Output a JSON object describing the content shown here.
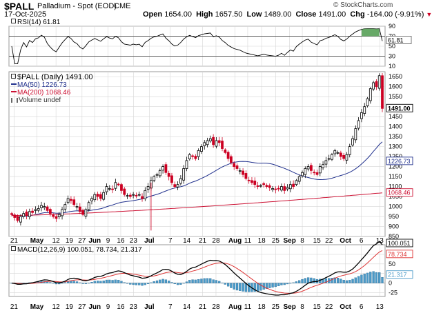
{
  "header": {
    "symbol": "$PALL",
    "name": "Palladium - Spot (EOD)",
    "exchange": "CME",
    "watermark": "© StockCharts.com",
    "date": "17-Oct-2025",
    "open_label": "Open",
    "open_value": "1654.00",
    "high_label": "High",
    "high_value": "1657.50",
    "low_label": "Low",
    "low_value": "1489.00",
    "close_label": "Close",
    "close_value": "1491.00",
    "chg_label": "Chg",
    "chg_value": "-164.00 (-9.91%)",
    "chg_glyph": "▼"
  },
  "colors": {
    "up": "#000000",
    "down": "#cc0022",
    "ma50": "#1f2f8c",
    "ma200": "#cc1133",
    "rsi_fill": "#4c9a4c",
    "hist": "#4a9ac8",
    "macd_signal": "#dd3333",
    "grid": "#d6d6d6"
  },
  "rsi": {
    "legend": "RSI(14) 61.81",
    "value_label": "61.81",
    "ticks": [
      "90",
      "70",
      "50",
      "30",
      "10"
    ]
  },
  "price": {
    "legend_main": "$PALL (Daily) 1491.00",
    "legend_ma50": "MA(50) 1226.73",
    "legend_ma200": "MA(200) 1068.46",
    "legend_volume": "Volume undef",
    "last_label": "1491.00",
    "ma50_label": "1226.73",
    "ma200_label": "1068.46",
    "ticks": [
      "1650",
      "1600",
      "1550",
      "1500",
      "1450",
      "1400",
      "1350",
      "1300",
      "1250",
      "1200",
      "1150",
      "1100",
      "1050",
      "1000",
      "950",
      "900",
      "850"
    ]
  },
  "macd": {
    "legend": "MACD(12,26,9) 100.051, 78.734, 21.317",
    "macd_label": "100.051",
    "signal_label": "78.734",
    "hist_label": "21.317",
    "ticks": [
      "75",
      "50",
      "25",
      "0",
      "-25"
    ]
  },
  "x_axis": {
    "labels": [
      "21",
      "May",
      "12",
      "19",
      "27",
      "Jun",
      "9",
      "16",
      "23",
      "Jul",
      "7",
      "14",
      "21",
      "28",
      "Aug",
      "11",
      "18",
      "25",
      "Sep",
      "8",
      "15",
      "22",
      "Oct",
      "6",
      "13"
    ]
  },
  "chart_data": {
    "type": "candlestick",
    "title": "$PALL Palladium - Spot (EOD) CME",
    "x_labels": [
      "21",
      "May",
      "12",
      "19",
      "27",
      "Jun",
      "9",
      "16",
      "23",
      "Jul",
      "7",
      "14",
      "21",
      "28",
      "Aug",
      "11",
      "18",
      "25",
      "Sep",
      "8",
      "15",
      "22",
      "Oct",
      "6",
      "13"
    ],
    "price_ylim": [
      850,
      1675
    ],
    "ohlc_close_estimated": [
      960,
      945,
      930,
      950,
      965,
      955,
      975,
      970,
      985,
      990,
      1005,
      1000,
      980,
      965,
      950,
      940,
      960,
      985,
      1010,
      1040,
      1030,
      1010,
      1000,
      975,
      960,
      985,
      1020,
      1040,
      1060,
      1050,
      1040,
      1070,
      1100,
      1090,
      1085,
      1120,
      1110,
      1080,
      1060,
      1055,
      1050,
      1060,
      1055,
      1060,
      1040,
      1080,
      1100,
      1130,
      1150,
      1160,
      1180,
      1200,
      1170,
      1150,
      1120,
      1100,
      1110,
      1140,
      1190,
      1230,
      1260,
      1250,
      1240,
      1280,
      1300,
      1320,
      1330,
      1340,
      1310,
      1330,
      1320,
      1290,
      1270,
      1240,
      1220,
      1200,
      1190,
      1180,
      1160,
      1140,
      1130,
      1120,
      1110,
      1100,
      1105,
      1110,
      1100,
      1095,
      1090,
      1085,
      1090,
      1100,
      1080,
      1095,
      1110,
      1100,
      1130,
      1150,
      1170,
      1190,
      1200,
      1180,
      1170,
      1160,
      1200,
      1210,
      1230,
      1240,
      1260,
      1280,
      1270,
      1250,
      1240,
      1260,
      1300,
      1340,
      1390,
      1430,
      1470,
      1500,
      1540,
      1590,
      1620,
      1600,
      1655,
      1491
    ],
    "ma50": {
      "name": "MA(50)",
      "last": 1226.73
    },
    "ma200": {
      "name": "MA(200)",
      "last": 1068.46
    },
    "rsi": {
      "name": "RSI(14)",
      "last": 61.81,
      "ylim": [
        0,
        100
      ]
    },
    "macd": {
      "name": "MACD(12,26,9)",
      "macd": 100.051,
      "signal": 78.734,
      "histogram": 21.317,
      "ylim": [
        -35,
        100
      ]
    }
  }
}
